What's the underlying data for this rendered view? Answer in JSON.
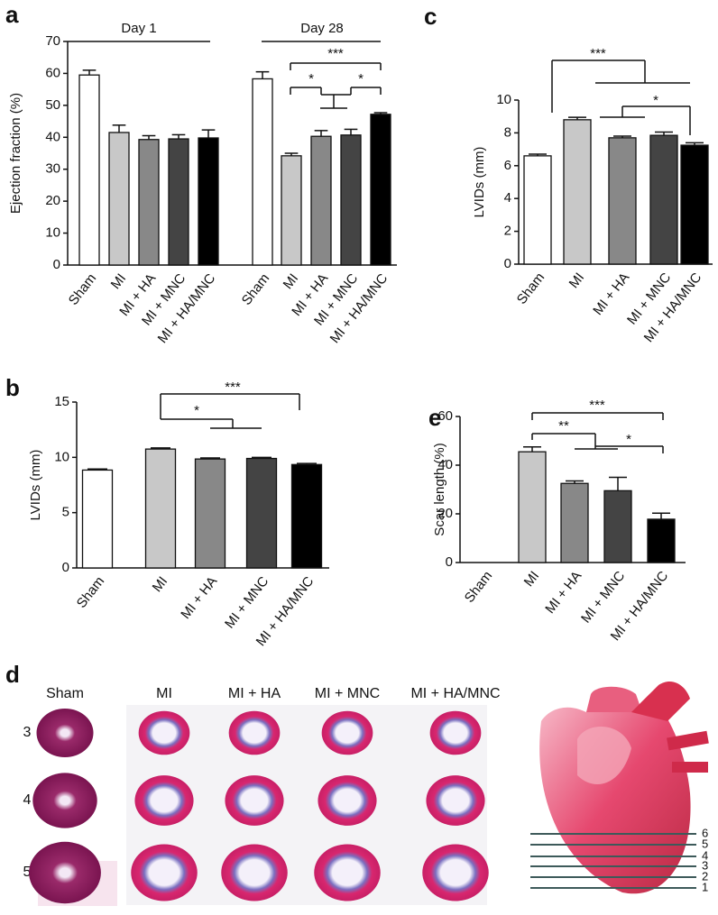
{
  "panel_labels": [
    "a",
    "b",
    "c",
    "d",
    "e"
  ],
  "chart_data": [
    {
      "type": "bar",
      "y_label": "Ejection fraction (%)",
      "categories": [
        "Sham",
        "MI",
        "MI + HA",
        "MI + MNC",
        "MI + HA/MNC",
        "Sham",
        "MI",
        "MI + HA",
        "MI + MNC",
        "MI + HA/MNC"
      ],
      "values": [
        59.5,
        41.5,
        39.3,
        39.5,
        39.8,
        58.3,
        34.2,
        40.3,
        40.7,
        47.2
      ],
      "errors": [
        1.5,
        2.3,
        1.2,
        1.3,
        2.5,
        2.2,
        0.8,
        1.8,
        1.8,
        0.5
      ],
      "colors": [
        "#ffffff",
        "#c8c8c8",
        "#888888",
        "#444444",
        "#000000",
        "#ffffff",
        "#c8c8c8",
        "#888888",
        "#444444",
        "#000000"
      ],
      "ylim": [
        0,
        70
      ],
      "yticks": [
        0,
        10,
        20,
        30,
        40,
        50,
        60,
        70
      ],
      "annotations": [
        "Day 1",
        "Day 28",
        "***",
        "*",
        "*"
      ]
    },
    {
      "type": "bar",
      "y_label": "LVIDs (mm)",
      "categories": [
        "Sham",
        "MI",
        "MI + HA",
        "MI + MNC",
        "MI + HA/MNC"
      ],
      "values": [
        8.85,
        10.75,
        9.85,
        9.9,
        9.35
      ],
      "errors": [
        0.1,
        0.1,
        0.1,
        0.1,
        0.1
      ],
      "colors": [
        "#ffffff",
        "#c8c8c8",
        "#888888",
        "#444444",
        "#000000"
      ],
      "ylim": [
        0,
        15
      ],
      "yticks": [
        0,
        5,
        10,
        15
      ],
      "annotations": [
        "***",
        "*"
      ]
    },
    {
      "type": "bar",
      "y_label": "LVIDs (mm)",
      "categories": [
        "Sham",
        "MI",
        "MI + HA",
        "MI + MNC",
        "MI + HA/MNC"
      ],
      "values": [
        6.6,
        8.8,
        7.7,
        7.85,
        7.25
      ],
      "errors": [
        0.1,
        0.15,
        0.1,
        0.2,
        0.15
      ],
      "colors": [
        "#ffffff",
        "#c8c8c8",
        "#888888",
        "#444444",
        "#000000"
      ],
      "ylim": [
        0,
        10
      ],
      "yticks": [
        0,
        2,
        4,
        6,
        8,
        10
      ],
      "annotations": [
        "***",
        "*"
      ]
    },
    {
      "type": "bar",
      "y_label": "Scar length (%)",
      "categories": [
        "Sham",
        "MI",
        "MI + HA",
        "MI + MNC",
        "MI + HA/MNC"
      ],
      "values": [
        0,
        45.5,
        32.5,
        29.5,
        17.8
      ],
      "errors": [
        0,
        2,
        1,
        5.5,
        2.5
      ],
      "colors": [
        "#ffffff",
        "#c8c8c8",
        "#888888",
        "#444444",
        "#000000"
      ],
      "ylim": [
        0,
        60
      ],
      "yticks": [
        0,
        20,
        40,
        60
      ],
      "annotations": [
        "***",
        "**",
        "*"
      ]
    }
  ],
  "histology": {
    "columns": [
      "Sham",
      "MI",
      "MI + HA",
      "MI + MNC",
      "MI + HA/MNC"
    ],
    "rows": [
      3,
      4,
      5
    ]
  },
  "heart_levels": [
    6,
    5,
    4,
    3,
    2,
    1
  ]
}
